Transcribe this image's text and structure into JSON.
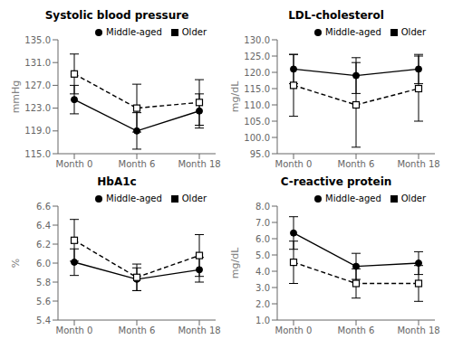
{
  "chart_data": [
    {
      "type": "line",
      "title": "Systolic blood pressure",
      "y_label": "mmHg",
      "categories": [
        "Month 0",
        "Month 6",
        "Month 18"
      ],
      "ylim": [
        115.0,
        135.0
      ],
      "yticks": [
        {
          "value": 115,
          "label": "115.0"
        },
        {
          "value": 119,
          "label": "119.0"
        },
        {
          "value": 123,
          "label": "123.0"
        },
        {
          "value": 127,
          "label": "127.0"
        },
        {
          "value": 131,
          "label": "131.0"
        },
        {
          "value": 135,
          "label": "135.0"
        }
      ],
      "legend": "upper right",
      "series": [
        {
          "name": "Middle-aged",
          "color": "#000000",
          "marker": "circle",
          "line_style": "solid",
          "values": [
            124.5,
            119.0,
            122.5
          ],
          "errors": [
            2.5,
            3.2,
            3.0
          ]
        },
        {
          "name": "Older",
          "color": "#000000",
          "marker": "square",
          "line_style": "dashed",
          "values": [
            129.0,
            123.0,
            124.0
          ],
          "errors": [
            3.5,
            4.2,
            4.0
          ]
        }
      ]
    },
    {
      "type": "line",
      "title": "LDL-cholesterol",
      "y_label": "mg/dL",
      "categories": [
        "Month 0",
        "Month 6",
        "Month 18"
      ],
      "ylim": [
        95.0,
        130.0
      ],
      "yticks": [
        {
          "value": 95,
          "label": "95.0"
        },
        {
          "value": 100,
          "label": "100.0"
        },
        {
          "value": 105,
          "label": "105.0"
        },
        {
          "value": 110,
          "label": "110.0"
        },
        {
          "value": 115,
          "label": "115.0"
        },
        {
          "value": 120,
          "label": "120.0"
        },
        {
          "value": 125,
          "label": "125.0"
        },
        {
          "value": 130,
          "label": "130.0"
        }
      ],
      "legend": "upper right",
      "series": [
        {
          "name": "Middle-aged",
          "color": "#000000",
          "marker": "circle",
          "line_style": "solid",
          "values": [
            121.0,
            119.0,
            121.0
          ],
          "errors": [
            4.5,
            5.5,
            4.5
          ]
        },
        {
          "name": "Older",
          "color": "#000000",
          "marker": "square",
          "line_style": "dashed",
          "values": [
            116.0,
            110.0,
            115.0
          ],
          "errors": [
            9.5,
            13.0,
            10.0
          ]
        }
      ]
    },
    {
      "type": "line",
      "title": "HbA1c",
      "y_label": "%",
      "categories": [
        "Month 0",
        "Month 6",
        "Month 18"
      ],
      "ylim": [
        5.4,
        6.6
      ],
      "yticks": [
        5.4,
        5.6,
        5.8,
        {
          "value": 6,
          "label": "6.0"
        },
        6.2,
        6.4,
        6.6
      ],
      "legend": "upper right",
      "series": [
        {
          "name": "Middle-aged",
          "color": "#000000",
          "marker": "circle",
          "line_style": "solid",
          "values": [
            6.01,
            5.83,
            5.93
          ],
          "errors": [
            0.14,
            0.12,
            0.13
          ]
        },
        {
          "name": "Older",
          "color": "#000000",
          "marker": "square",
          "line_style": "dashed",
          "values": [
            6.24,
            5.85,
            6.08
          ],
          "errors": [
            0.22,
            0.14,
            0.22
          ]
        }
      ]
    },
    {
      "type": "line",
      "title": "C-reactive protein",
      "y_label": "mg/dL",
      "categories": [
        "Month 0",
        "Month 6",
        "Month 18"
      ],
      "ylim": [
        1.0,
        8.0
      ],
      "yticks": [
        {
          "value": 1,
          "label": "1.0"
        },
        {
          "value": 2,
          "label": "2.0"
        },
        {
          "value": 3,
          "label": "3.0"
        },
        {
          "value": 4,
          "label": "4.0"
        },
        {
          "value": 5,
          "label": "5.0"
        },
        {
          "value": 6,
          "label": "6.0"
        },
        {
          "value": 7,
          "label": "7.0"
        },
        {
          "value": 8,
          "label": "8.0"
        }
      ],
      "legend": "upper right",
      "series": [
        {
          "name": "Middle-aged",
          "color": "#000000",
          "marker": "circle",
          "line_style": "solid",
          "values": [
            6.35,
            4.3,
            4.5
          ],
          "errors": [
            1.0,
            0.8,
            0.7
          ]
        },
        {
          "name": "Older",
          "color": "#000000",
          "marker": "square",
          "line_style": "dashed",
          "values": [
            4.55,
            3.25,
            3.25
          ],
          "errors": [
            1.3,
            0.9,
            1.1
          ]
        }
      ]
    }
  ]
}
